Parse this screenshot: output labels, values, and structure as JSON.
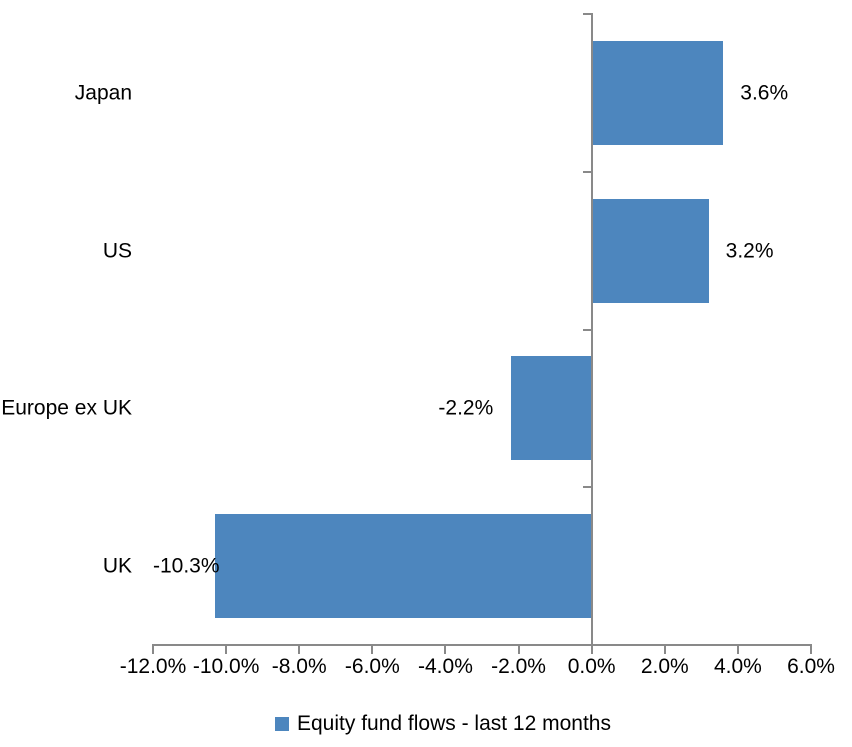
{
  "chart_data": {
    "type": "bar",
    "orientation": "horizontal",
    "categories": [
      "Japan",
      "US",
      "Europe ex UK",
      "UK"
    ],
    "series": [
      {
        "name": "Equity fund flows - last 12 months",
        "values": [
          3.6,
          3.2,
          -2.2,
          -10.3
        ],
        "data_labels": [
          "3.6%",
          "3.2%",
          "-2.2%",
          "-10.3%"
        ]
      }
    ],
    "xlim": [
      -12,
      6
    ],
    "x_ticks": [
      {
        "value": -12,
        "label": "-12.0%"
      },
      {
        "value": -10,
        "label": "-10.0%"
      },
      {
        "value": -8,
        "label": "-8.0%"
      },
      {
        "value": -6,
        "label": "-6.0%"
      },
      {
        "value": -4,
        "label": "-4.0%"
      },
      {
        "value": -2,
        "label": "-2.0%"
      },
      {
        "value": 0,
        "label": "0.0%"
      },
      {
        "value": 2,
        "label": "2.0%"
      },
      {
        "value": 4,
        "label": "4.0%"
      },
      {
        "value": 6,
        "label": "6.0%"
      }
    ],
    "grid": false,
    "legend_position": "bottom",
    "colors": {
      "bar": "#4D86BE",
      "axis": "#898989",
      "text": "#000000",
      "background": "#FFFFFF"
    }
  },
  "legend": {
    "marker_icon": "series-square-icon",
    "label": "Equity fund flows - last 12 months"
  }
}
